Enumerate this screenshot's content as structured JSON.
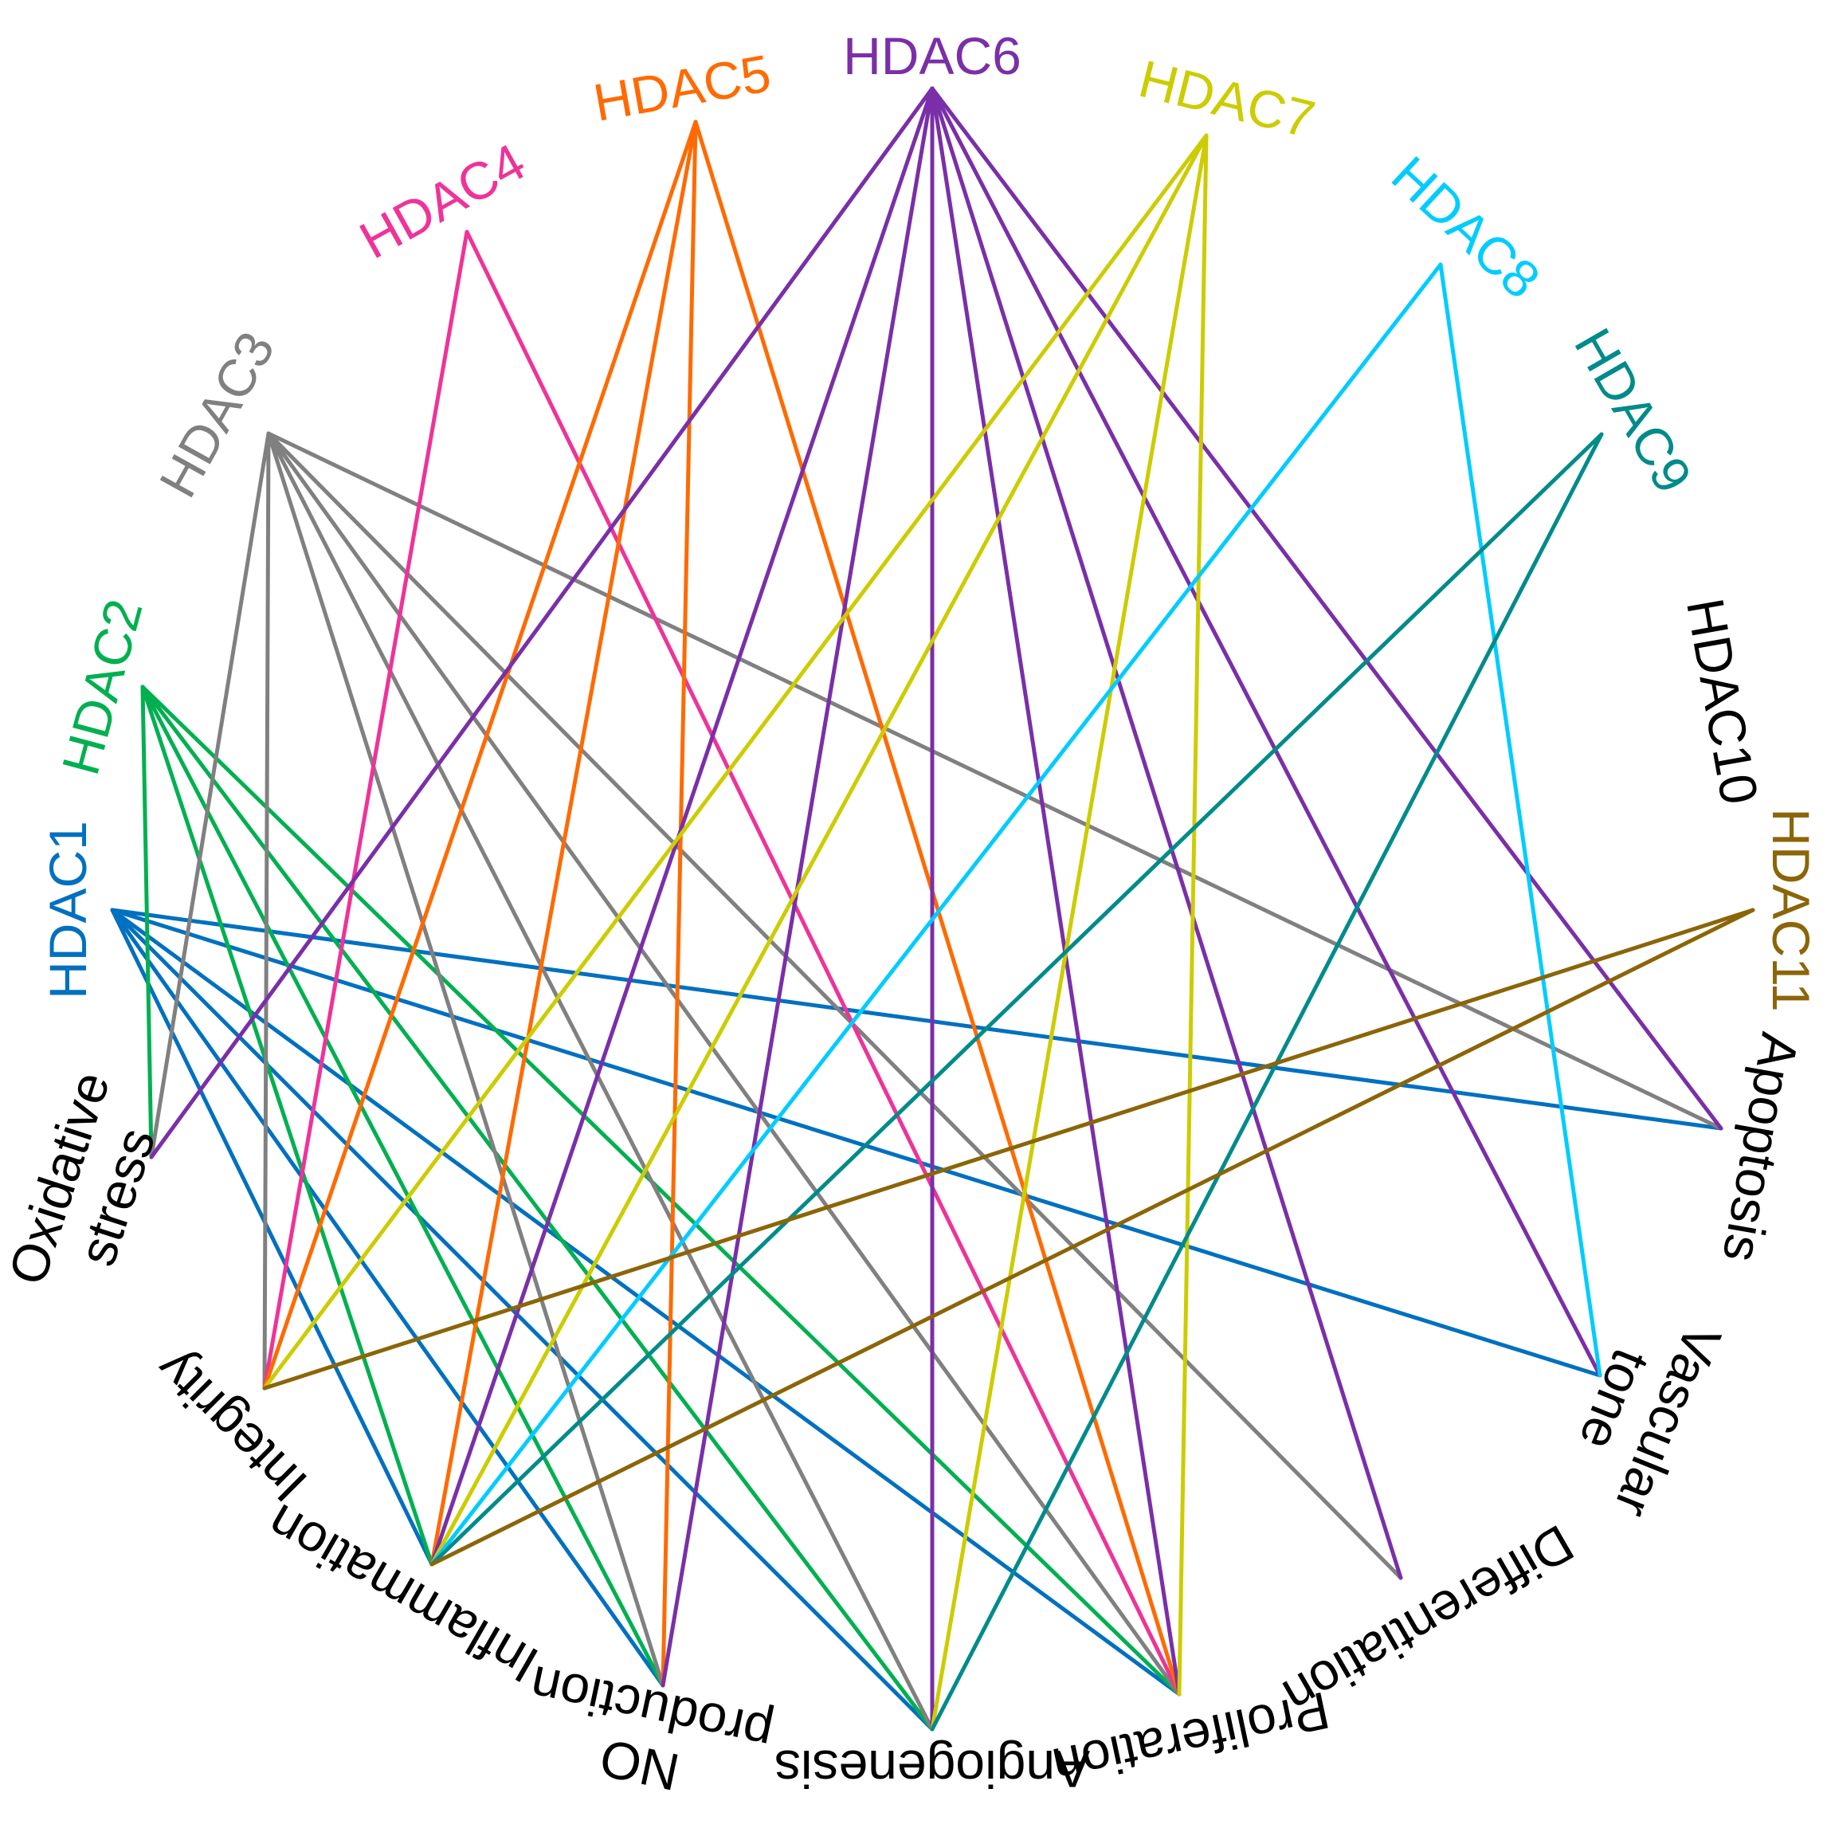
{
  "hdacs": [
    {
      "id": "HDAC1",
      "label": "HDAC1",
      "color": "#0070C0"
    },
    {
      "id": "HDAC2",
      "label": "HDAC2",
      "color": "#00B050"
    },
    {
      "id": "HDAC3",
      "label": "HDAC3",
      "color": "#808080"
    },
    {
      "id": "HDAC4",
      "label": "HDAC4",
      "color": "#EE3399"
    },
    {
      "id": "HDAC5",
      "label": "HDAC5",
      "color": "#FF6A00"
    },
    {
      "id": "HDAC6",
      "label": "HDAC6",
      "color": "#7A2FA8"
    },
    {
      "id": "HDAC7",
      "label": "HDAC7",
      "color": "#CCCC00"
    },
    {
      "id": "HDAC8",
      "label": "HDAC8",
      "color": "#00CCFF"
    },
    {
      "id": "HDAC9",
      "label": "HDAC9",
      "color": "#008B8B"
    },
    {
      "id": "HDAC10",
      "label": "HDAC10",
      "color": "#000000"
    },
    {
      "id": "HDAC11",
      "label": "HDAC11",
      "color": "#8B6508"
    }
  ],
  "functions": [
    {
      "id": "oxidative",
      "lines": [
        "Oxidative",
        "stress"
      ]
    },
    {
      "id": "integrity",
      "lines": [
        "Integrity"
      ]
    },
    {
      "id": "inflammation",
      "lines": [
        "Inflammation"
      ]
    },
    {
      "id": "no",
      "lines": [
        "NO",
        "production"
      ]
    },
    {
      "id": "angiogenesis",
      "lines": [
        "Angiogenesis"
      ]
    },
    {
      "id": "proliferation",
      "lines": [
        "Proliferation"
      ]
    },
    {
      "id": "differentiation",
      "lines": [
        "Differentiation"
      ]
    },
    {
      "id": "vascular",
      "lines": [
        "Vascular",
        "tone"
      ]
    },
    {
      "id": "apoptosis",
      "lines": [
        "Apoptosis"
      ]
    }
  ],
  "edges": [
    [
      "HDAC1",
      "inflammation"
    ],
    [
      "HDAC1",
      "no"
    ],
    [
      "HDAC1",
      "angiogenesis"
    ],
    [
      "HDAC1",
      "proliferation"
    ],
    [
      "HDAC1",
      "vascular"
    ],
    [
      "HDAC1",
      "apoptosis"
    ],
    [
      "HDAC2",
      "oxidative"
    ],
    [
      "HDAC2",
      "inflammation"
    ],
    [
      "HDAC2",
      "no"
    ],
    [
      "HDAC2",
      "angiogenesis"
    ],
    [
      "HDAC2",
      "proliferation"
    ],
    [
      "HDAC3",
      "oxidative"
    ],
    [
      "HDAC3",
      "integrity"
    ],
    [
      "HDAC3",
      "no"
    ],
    [
      "HDAC3",
      "angiogenesis"
    ],
    [
      "HDAC3",
      "proliferation"
    ],
    [
      "HDAC3",
      "differentiation"
    ],
    [
      "HDAC3",
      "apoptosis"
    ],
    [
      "HDAC4",
      "integrity"
    ],
    [
      "HDAC4",
      "proliferation"
    ],
    [
      "HDAC5",
      "integrity"
    ],
    [
      "HDAC5",
      "inflammation"
    ],
    [
      "HDAC5",
      "no"
    ],
    [
      "HDAC5",
      "proliferation"
    ],
    [
      "HDAC6",
      "oxidative"
    ],
    [
      "HDAC6",
      "inflammation"
    ],
    [
      "HDAC6",
      "no"
    ],
    [
      "HDAC6",
      "angiogenesis"
    ],
    [
      "HDAC6",
      "proliferation"
    ],
    [
      "HDAC6",
      "differentiation"
    ],
    [
      "HDAC6",
      "vascular"
    ],
    [
      "HDAC6",
      "apoptosis"
    ],
    [
      "HDAC7",
      "integrity"
    ],
    [
      "HDAC7",
      "inflammation"
    ],
    [
      "HDAC7",
      "angiogenesis"
    ],
    [
      "HDAC7",
      "proliferation"
    ],
    [
      "HDAC8",
      "inflammation"
    ],
    [
      "HDAC8",
      "vascular"
    ],
    [
      "HDAC9",
      "inflammation"
    ],
    [
      "HDAC9",
      "angiogenesis"
    ],
    [
      "HDAC11",
      "integrity"
    ],
    [
      "HDAC11",
      "inflammation"
    ]
  ]
}
